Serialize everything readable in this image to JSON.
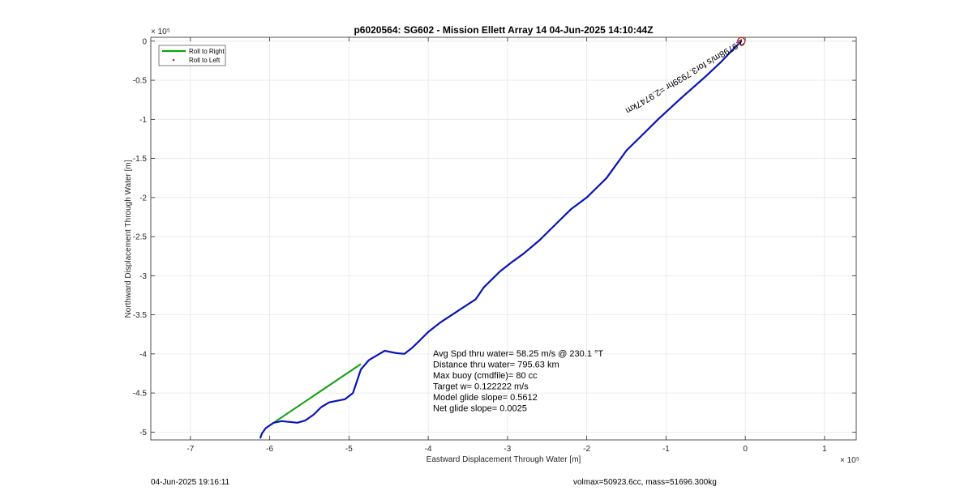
{
  "chart_data": {
    "type": "line",
    "title": "p6020564: SG602 - Mission Ellett Array 14 04-Jun-2025 14:10:44Z",
    "xlabel": "Eastward Displacement Through Water [m]",
    "ylabel": "Northward Displacement Through Water [m]",
    "x_exponent": "× 10⁵",
    "y_exponent": "× 10⁵",
    "xlim": [
      -7.5,
      1.4
    ],
    "ylim": [
      -5.1,
      0.05
    ],
    "x_ticks": [
      -7,
      -6,
      -5,
      -4,
      -3,
      -2,
      -1,
      0,
      1
    ],
    "x_tick_labels": [
      "-7",
      "-6",
      "-5",
      "-4",
      "-3",
      "-2",
      "-1",
      "0",
      "1"
    ],
    "y_ticks": [
      0,
      -0.5,
      -1,
      -1.5,
      -2,
      -2.5,
      -3,
      -3.5,
      -4,
      -4.5,
      -5
    ],
    "y_tick_labels": [
      "0",
      "-0.5",
      "-1",
      "-1.5",
      "-2",
      "-2.5",
      "-3",
      "-3.5",
      "-4",
      "-4.5",
      "-5"
    ],
    "grid": true,
    "legend_position": "top-left",
    "legend": [
      {
        "label": "Roll to Right",
        "color": "#10a010",
        "marker": "line"
      },
      {
        "label": "Roll to Left",
        "color": "#d62020",
        "marker": "dot"
      }
    ],
    "series": [
      {
        "color": "#0a14b4",
        "x": [
          -0.05,
          -0.15,
          -0.3,
          -0.5,
          -0.8,
          -1.1,
          -1.3,
          -1.5,
          -1.75,
          -1.85,
          -2.0,
          -2.2,
          -2.4,
          -2.6,
          -2.8,
          -2.95,
          -3.1,
          -3.3,
          -3.4,
          -3.55,
          -3.7,
          -3.85,
          -4.0,
          -4.1,
          -4.2,
          -4.3,
          -4.4,
          -4.55,
          -4.65,
          -4.75,
          -4.85,
          -4.9,
          -4.95,
          -5.05,
          -5.15,
          -5.25,
          -5.35,
          -5.45,
          -5.55,
          -5.65,
          -5.75,
          -5.85,
          -5.95,
          -6.05,
          -6.1,
          -6.12
        ],
        "y": [
          0,
          -0.1,
          -0.26,
          -0.45,
          -0.72,
          -1.0,
          -1.2,
          -1.4,
          -1.75,
          -1.85,
          -2.0,
          -2.15,
          -2.35,
          -2.55,
          -2.72,
          -2.83,
          -2.95,
          -3.15,
          -3.3,
          -3.4,
          -3.5,
          -3.6,
          -3.72,
          -3.82,
          -3.92,
          -4.0,
          -3.99,
          -3.96,
          -4.02,
          -4.08,
          -4.2,
          -4.35,
          -4.5,
          -4.58,
          -4.6,
          -4.62,
          -4.68,
          -4.78,
          -4.85,
          -4.88,
          -4.87,
          -4.86,
          -4.88,
          -4.95,
          -5.02,
          -5.08
        ]
      }
    ],
    "roll_right_segment": {
      "color": "#10a010",
      "x": [
        -4.85,
        -5.95
      ],
      "y": [
        -4.13,
        -4.88
      ]
    },
    "start_marker": {
      "x": -0.05,
      "y": 0,
      "color": "#d62020"
    },
    "leg_annotation": "2.9798m/s for3.7939hr =2.9747km",
    "annotations": [
      "Avg Spd thru water= 58.25 m/s @ 230.1 °T",
      "Distance thru water= 795.63 km",
      "Max buoy (cmdfile)= 80 cc",
      "Target w= 0.122222 m/s",
      "Model glide slope= 0.5612",
      "Net glide slope= 0.0025"
    ]
  },
  "footer": {
    "timestamp": "04-Jun-2025 19:16:11",
    "info": "volmax=50923.6cc, mass=51696.300kg"
  }
}
